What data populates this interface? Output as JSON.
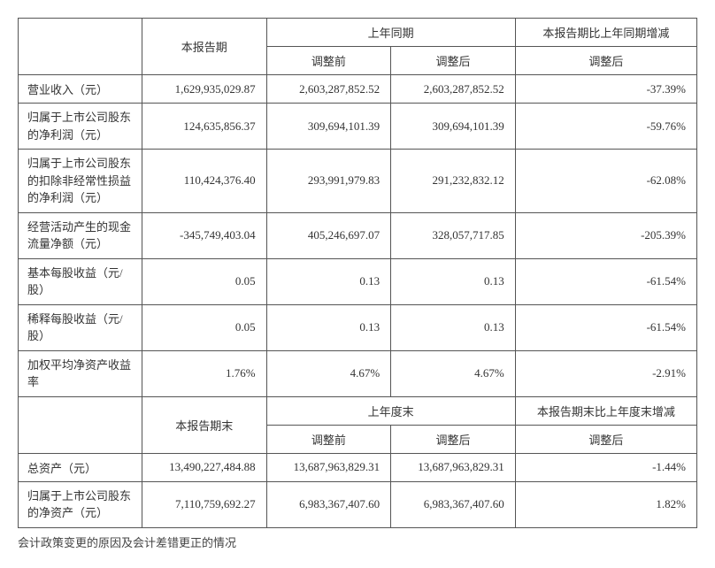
{
  "headers1": {
    "col1": "本报告期",
    "col2": "上年同期",
    "col3": "本报告期比上年同期增减",
    "sub_before": "调整前",
    "sub_after": "调整后"
  },
  "rows1": [
    {
      "label": "营业收入（元）",
      "c1": "1,629,935,029.87",
      "c2": "2,603,287,852.52",
      "c3": "2,603,287,852.52",
      "c4": "-37.39%"
    },
    {
      "label": "归属于上市公司股东的净利润（元）",
      "c1": "124,635,856.37",
      "c2": "309,694,101.39",
      "c3": "309,694,101.39",
      "c4": "-59.76%"
    },
    {
      "label": "归属于上市公司股东的扣除非经常性损益的净利润（元）",
      "c1": "110,424,376.40",
      "c2": "293,991,979.83",
      "c3": "291,232,832.12",
      "c4": "-62.08%"
    },
    {
      "label": "经营活动产生的现金流量净额（元）",
      "c1": "-345,749,403.04",
      "c2": "405,246,697.07",
      "c3": "328,057,717.85",
      "c4": "-205.39%"
    },
    {
      "label": "基本每股收益（元/股）",
      "c1": "0.05",
      "c2": "0.13",
      "c3": "0.13",
      "c4": "-61.54%"
    },
    {
      "label": "稀释每股收益（元/股）",
      "c1": "0.05",
      "c2": "0.13",
      "c3": "0.13",
      "c4": "-61.54%"
    },
    {
      "label": "加权平均净资产收益率",
      "c1": "1.76%",
      "c2": "4.67%",
      "c3": "4.67%",
      "c4": "-2.91%"
    }
  ],
  "headers2": {
    "col1": "本报告期末",
    "col2": "上年度末",
    "col3": "本报告期末比上年度末增减"
  },
  "rows2": [
    {
      "label": "总资产（元）",
      "c1": "13,490,227,484.88",
      "c2": "13,687,963,829.31",
      "c3": "13,687,963,829.31",
      "c4": "-1.44%"
    },
    {
      "label": "归属于上市公司股东的净资产（元）",
      "c1": "7,110,759,692.27",
      "c2": "6,983,367,407.60",
      "c3": "6,983,367,407.60",
      "c4": "1.82%"
    }
  ],
  "footnote": "会计政策变更的原因及会计差错更正的情况"
}
